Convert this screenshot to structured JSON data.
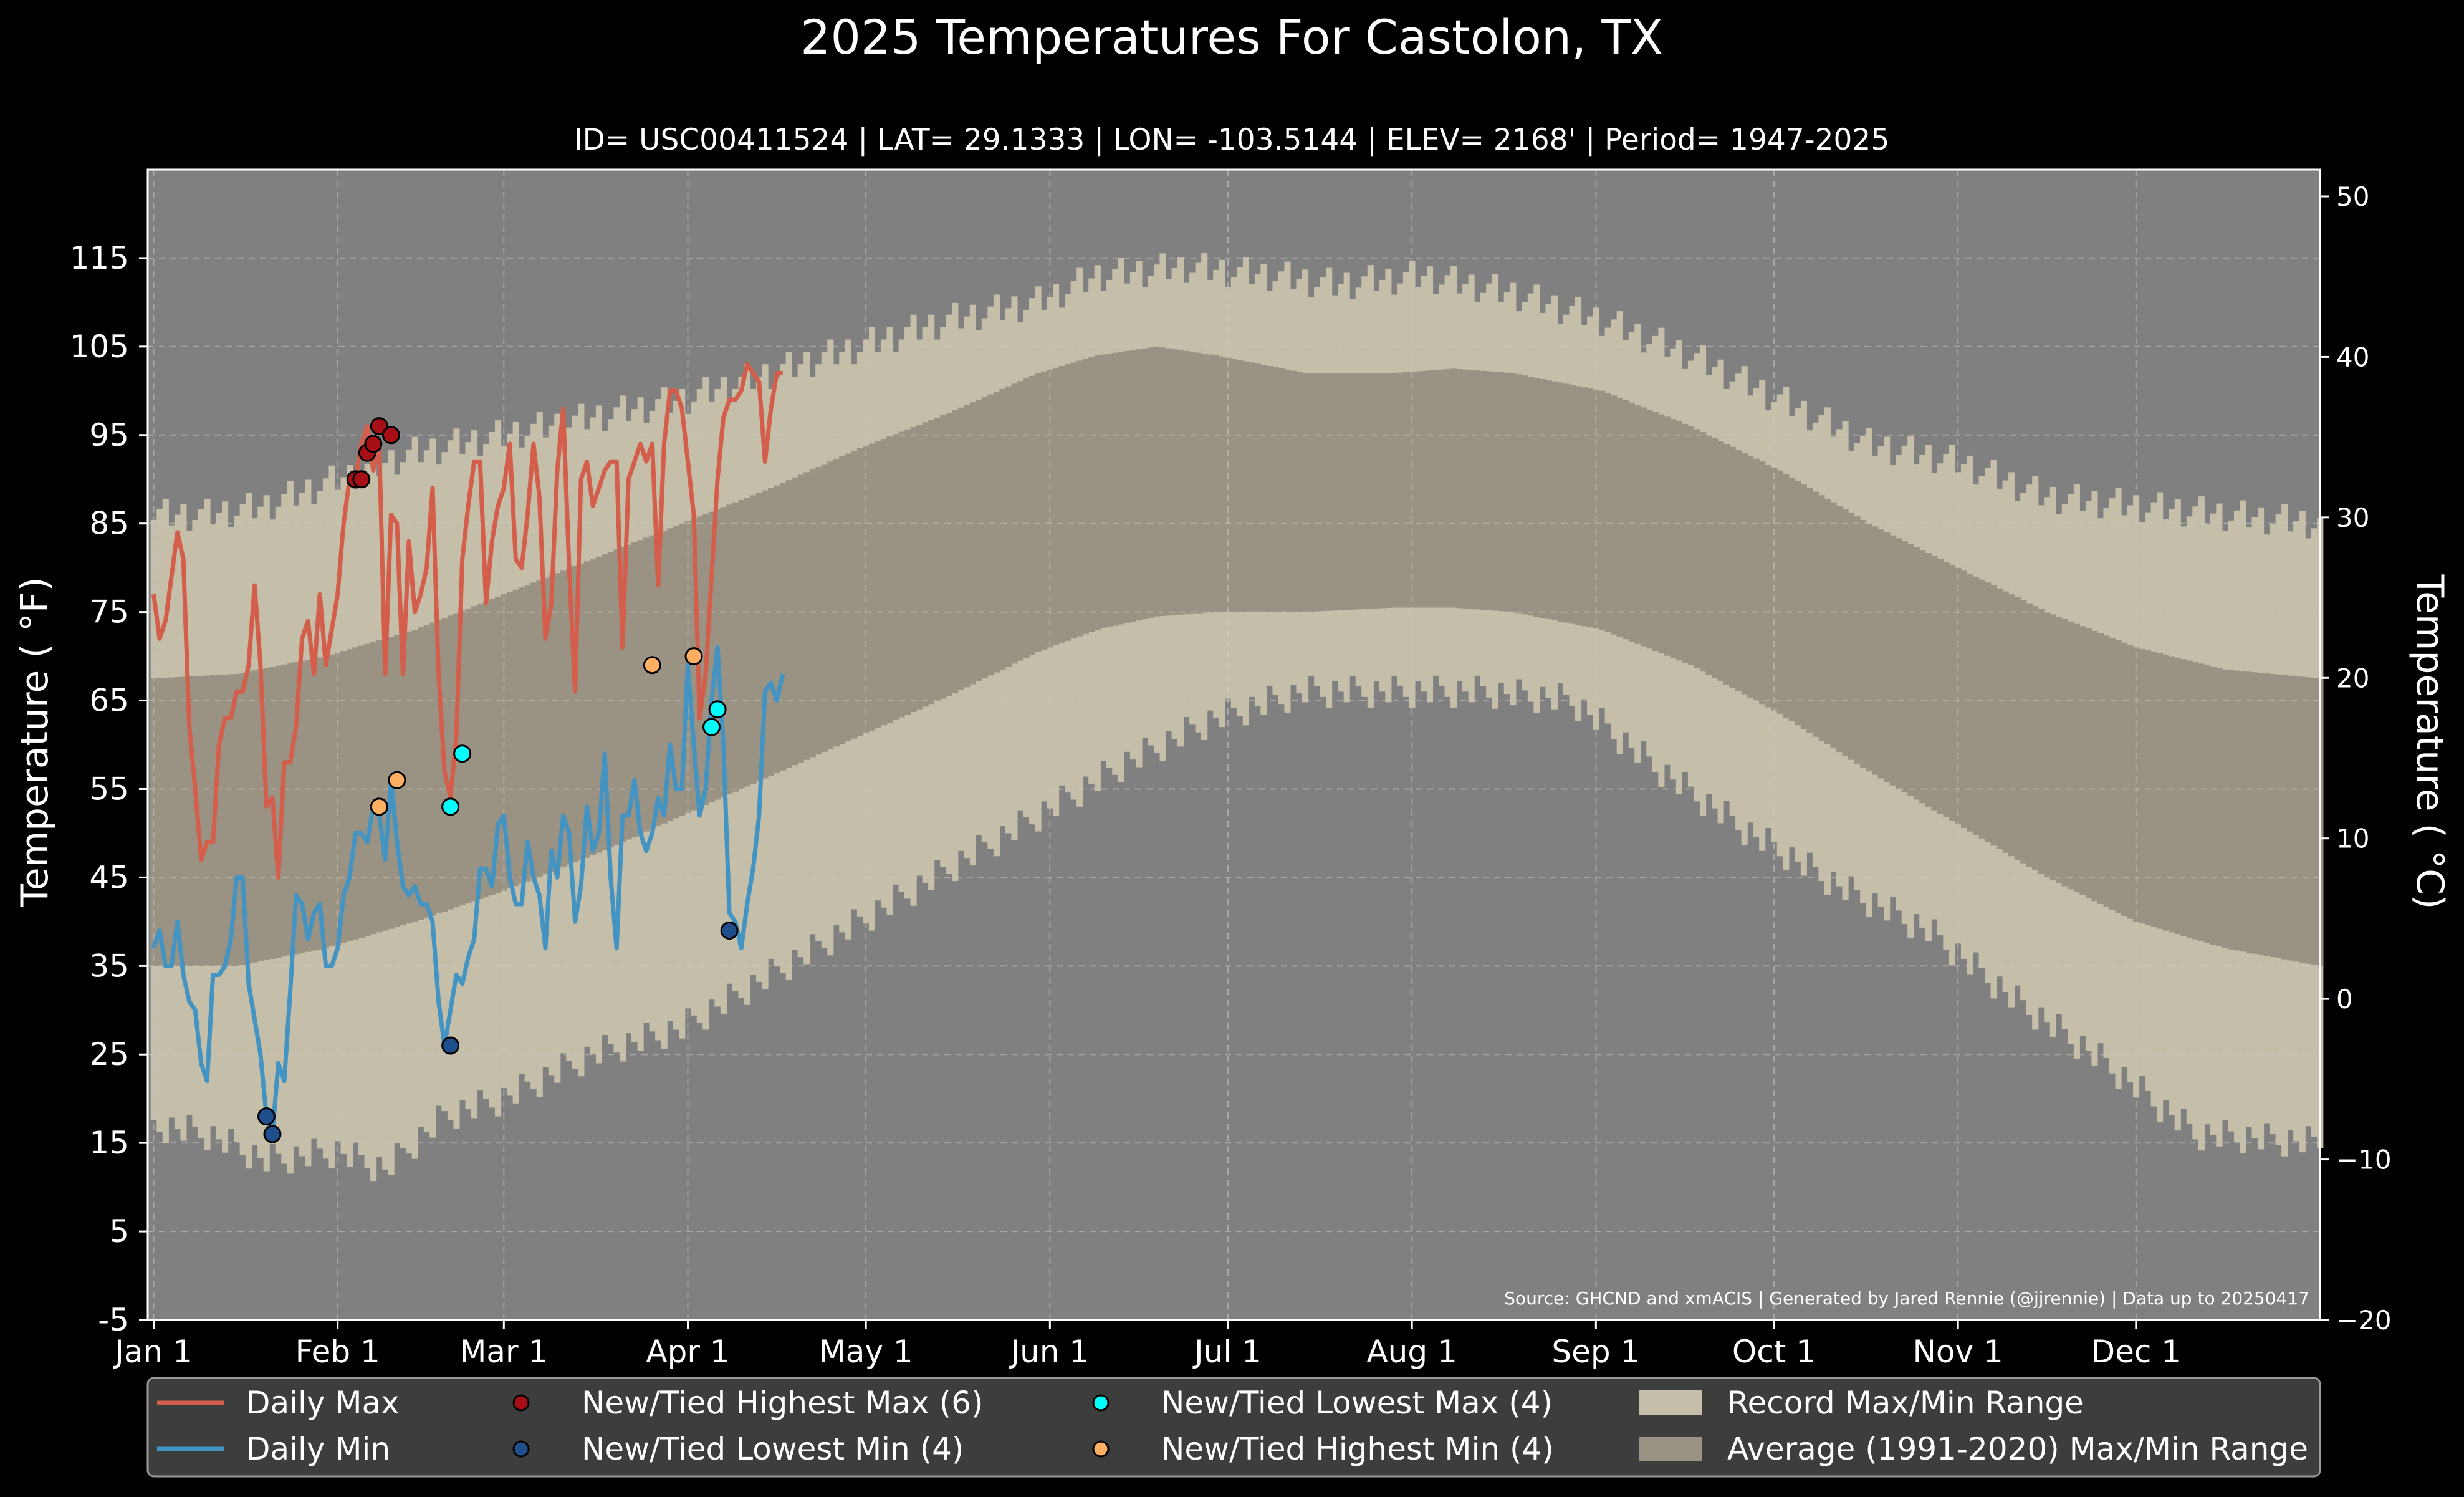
{
  "chart_data": {
    "type": "line",
    "title": "2025 Temperatures For Castolon, TX",
    "subtitle": "ID= USC00411524 | LAT= 29.1333 | LON= -103.5144 | ELEV= 2168' | Period= 1947-2025",
    "ylabel_left": "Temperature ( °F)",
    "ylabel_right": "Temperature ( °C)",
    "source_note": "Source: GHCND and xmACIS | Generated by Jared Rennie (@jjrennie) | Data up to 20250417",
    "x_axis": {
      "unit": "day of year",
      "range": [
        0,
        366
      ],
      "ticks": [
        {
          "day": 1,
          "label": "Jan 1"
        },
        {
          "day": 32,
          "label": "Feb 1"
        },
        {
          "day": 60,
          "label": "Mar 1"
        },
        {
          "day": 91,
          "label": "Apr 1"
        },
        {
          "day": 121,
          "label": "May 1"
        },
        {
          "day": 152,
          "label": "Jun 1"
        },
        {
          "day": 182,
          "label": "Jul 1"
        },
        {
          "day": 213,
          "label": "Aug 1"
        },
        {
          "day": 244,
          "label": "Sep 1"
        },
        {
          "day": 274,
          "label": "Oct 1"
        },
        {
          "day": 305,
          "label": "Nov 1"
        },
        {
          "day": 335,
          "label": "Dec 1"
        }
      ]
    },
    "y_axis_left": {
      "range": [
        -5,
        125
      ],
      "ticks": [
        "-5",
        "5",
        "15",
        "25",
        "35",
        "45",
        "55",
        "65",
        "75",
        "85",
        "95",
        "105",
        "115"
      ]
    },
    "y_axis_right": {
      "range": [
        -20,
        51.67
      ],
      "ticks": [
        "−20",
        "−10",
        "0",
        "10",
        "20",
        "30",
        "40",
        "50"
      ]
    },
    "grid": true,
    "legend_position": "bottom",
    "colors": {
      "background": "#000000",
      "plot_bg": "#808080",
      "record_range": "#c5bea8",
      "normal_range": "#9a9282",
      "daily_max": "#d45e4c",
      "daily_min": "#4393c3",
      "record_high_max": "#a50f15",
      "record_low_min": "#1f4e8c",
      "record_low_max": "#00ffff",
      "record_high_min": "#fdae61",
      "legend_bg": "#3d3d3d"
    },
    "record_high_anchors": {
      "days": [
        1,
        10,
        20,
        32,
        45,
        60,
        75,
        90,
        105,
        120,
        135,
        150,
        160,
        175,
        190,
        200,
        215,
        230,
        245,
        260,
        275,
        290,
        305,
        320,
        335,
        350,
        366
      ],
      "values": [
        86,
        86,
        87,
        90,
        93,
        95,
        97,
        99,
        102,
        105,
        108,
        110,
        113,
        114,
        113,
        112,
        113,
        111,
        108,
        104,
        99,
        94,
        92,
        88,
        87,
        86,
        85
      ]
    },
    "record_low_anchors": {
      "days": [
        1,
        10,
        20,
        32,
        40,
        50,
        60,
        75,
        90,
        105,
        120,
        135,
        150,
        165,
        180,
        195,
        210,
        225,
        240,
        255,
        270,
        285,
        300,
        315,
        330,
        345,
        366
      ],
      "values": [
        17,
        16,
        13,
        14,
        12,
        18,
        20,
        25,
        28,
        34,
        40,
        46,
        52,
        58,
        63,
        66,
        66,
        66,
        65,
        57,
        50,
        44,
        39,
        31,
        24,
        16,
        15
      ]
    },
    "normal_high_anchors": {
      "days": [
        1,
        15,
        30,
        45,
        60,
        75,
        90,
        105,
        120,
        135,
        150,
        160,
        170,
        180,
        195,
        210,
        220,
        230,
        245,
        260,
        275,
        290,
        305,
        320,
        335,
        350,
        366
      ],
      "values": [
        67.5,
        68,
        70,
        73,
        77,
        81,
        85,
        89,
        93.5,
        97.5,
        102,
        104,
        105,
        104,
        102,
        102,
        102.5,
        102,
        100,
        96,
        91,
        85,
        80,
        75,
        71,
        68.5,
        67.5
      ]
    },
    "normal_low_anchors": {
      "days": [
        1,
        15,
        30,
        45,
        60,
        75,
        90,
        105,
        120,
        135,
        150,
        160,
        170,
        180,
        195,
        210,
        220,
        230,
        245,
        260,
        275,
        290,
        305,
        320,
        335,
        350,
        366
      ],
      "values": [
        35,
        35,
        37,
        40,
        43.5,
        47.5,
        52,
        56.5,
        61,
        65.5,
        70.5,
        73,
        74.5,
        75,
        75,
        75.5,
        75.5,
        75,
        73,
        69,
        63.5,
        57,
        51,
        45,
        40,
        37,
        35
      ]
    },
    "series": [
      {
        "name": "Daily Max",
        "days": [
          1,
          2,
          3,
          4,
          5,
          6,
          7,
          8,
          9,
          10,
          11,
          12,
          13,
          14,
          15,
          16,
          17,
          18,
          19,
          20,
          21,
          22,
          23,
          24,
          25,
          26,
          27,
          28,
          29,
          30,
          31,
          32,
          33,
          34,
          35,
          36,
          37,
          38,
          39,
          40,
          41,
          42,
          43,
          44,
          45,
          46,
          47,
          48,
          49,
          50,
          51,
          52,
          53,
          54,
          55,
          56,
          57,
          58,
          59,
          60,
          61,
          62,
          63,
          64,
          65,
          66,
          67,
          68,
          69,
          70,
          71,
          72,
          73,
          74,
          75,
          76,
          77,
          78,
          79,
          80,
          81,
          82,
          83,
          84,
          85,
          86,
          87,
          88,
          89,
          90,
          91,
          92,
          93,
          94,
          95,
          96,
          97,
          98,
          99,
          100,
          101,
          102,
          103,
          104,
          105,
          106,
          107
        ],
        "values": [
          77,
          72,
          74,
          79,
          84,
          81,
          62,
          55,
          47,
          49,
          49,
          60,
          63,
          63,
          66,
          66,
          69,
          78,
          69,
          53,
          54,
          45,
          58,
          58,
          62,
          72,
          74,
          68,
          77,
          69,
          73,
          77,
          85,
          90,
          90,
          94,
          96,
          91,
          94,
          68,
          86,
          85,
          68,
          83,
          75,
          77,
          80,
          89,
          68,
          57,
          54,
          61,
          81,
          87,
          92,
          92,
          76,
          83,
          87,
          89,
          94,
          81,
          80,
          86,
          94,
          88,
          72,
          76,
          91,
          98,
          80,
          66,
          90,
          92,
          87,
          89,
          91,
          92,
          92,
          71,
          90,
          92,
          94,
          92,
          94,
          78,
          94,
          100,
          100,
          98,
          92,
          86,
          63,
          68,
          79,
          90,
          97,
          99,
          99,
          100,
          103,
          102,
          101,
          92,
          98,
          102,
          102
        ]
      },
      {
        "name": "Daily Min",
        "days": [
          1,
          2,
          3,
          4,
          5,
          6,
          7,
          8,
          9,
          10,
          11,
          12,
          13,
          14,
          15,
          16,
          17,
          18,
          19,
          20,
          21,
          22,
          23,
          24,
          25,
          26,
          27,
          28,
          29,
          30,
          31,
          32,
          33,
          34,
          35,
          36,
          37,
          38,
          39,
          40,
          41,
          42,
          43,
          44,
          45,
          46,
          47,
          48,
          49,
          50,
          51,
          52,
          53,
          54,
          55,
          56,
          57,
          58,
          59,
          60,
          61,
          62,
          63,
          64,
          65,
          66,
          67,
          68,
          69,
          70,
          71,
          72,
          73,
          74,
          75,
          76,
          77,
          78,
          79,
          80,
          81,
          82,
          83,
          84,
          85,
          86,
          87,
          88,
          89,
          90,
          91,
          92,
          93,
          94,
          95,
          96,
          97,
          98,
          99,
          100,
          101,
          102,
          103,
          104,
          105,
          106,
          107
        ],
        "values": [
          37,
          39,
          35,
          35,
          40,
          34,
          31,
          30,
          24,
          22,
          34,
          34,
          35,
          38,
          45,
          45,
          33,
          29,
          25,
          18,
          16,
          24,
          22,
          32,
          43,
          42,
          38,
          41,
          42,
          35,
          35,
          37,
          43,
          45,
          50,
          50,
          49,
          53,
          52,
          47,
          56,
          49,
          44,
          43,
          44,
          42,
          42,
          40,
          31,
          26,
          30,
          34,
          33,
          36,
          38,
          46,
          46,
          44,
          51,
          52,
          45,
          42,
          42,
          49,
          45,
          43,
          37,
          48,
          45,
          52,
          50,
          40,
          44,
          53,
          48,
          50,
          59,
          45,
          37,
          52,
          52,
          56,
          50,
          48,
          50,
          54,
          52,
          60,
          55,
          55,
          69,
          60,
          52,
          55,
          65,
          71,
          60,
          41,
          40,
          37,
          42,
          46,
          52,
          66,
          67,
          65,
          68
        ]
      }
    ],
    "record_markers": [
      {
        "name": "New/Tied Highest Max (6)",
        "points": [
          [
            35,
            90
          ],
          [
            36,
            90
          ],
          [
            37,
            93
          ],
          [
            38,
            94
          ],
          [
            39,
            96
          ],
          [
            41,
            95
          ]
        ]
      },
      {
        "name": "New/Tied Lowest Min (4)",
        "points": [
          [
            20,
            18
          ],
          [
            21,
            16
          ],
          [
            51,
            26
          ],
          [
            98,
            39
          ]
        ]
      },
      {
        "name": "New/Tied Lowest Max (4)",
        "points": [
          [
            51,
            53
          ],
          [
            53,
            59
          ],
          [
            95,
            62
          ],
          [
            96,
            64
          ]
        ]
      },
      {
        "name": "New/Tied Highest Min (4)",
        "points": [
          [
            39,
            53
          ],
          [
            42,
            56
          ],
          [
            85,
            69
          ],
          [
            92,
            70
          ]
        ]
      }
    ],
    "legend": [
      {
        "label": "Daily Max",
        "kind": "line",
        "color": "#d45e4c"
      },
      {
        "label": "New/Tied Highest Max (6)",
        "kind": "dot",
        "color": "#a50f15"
      },
      {
        "label": "New/Tied Lowest Max (4)",
        "kind": "dot",
        "color": "#00ffff"
      },
      {
        "label": "Record Max/Min Range",
        "kind": "patch",
        "color": "#c5bea8"
      },
      {
        "label": "Daily Min",
        "kind": "line",
        "color": "#4393c3"
      },
      {
        "label": "New/Tied Lowest Min (4)",
        "kind": "dot",
        "color": "#1f4e8c"
      },
      {
        "label": "New/Tied Highest Min (4)",
        "kind": "dot",
        "color": "#fdae61"
      },
      {
        "label": "Average (1991-2020) Max/Min Range",
        "kind": "patch",
        "color": "#9a9282"
      }
    ]
  }
}
